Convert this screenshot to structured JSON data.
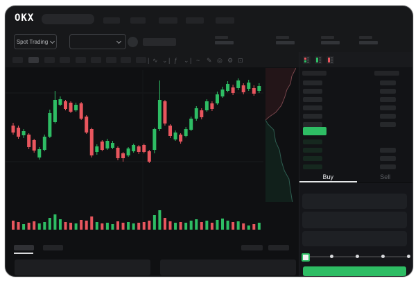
{
  "app": {
    "logo_text": "OKX"
  },
  "market_bar": {
    "market_selector_label": "Spot Trading"
  },
  "trade_panel": {
    "buy_tab_label": "Buy",
    "sell_tab_label": "Sell",
    "slider_stops": 5,
    "input_fields": 3
  },
  "order_book": {
    "view_toggles": [
      "book-both",
      "bids-only",
      "asks-only"
    ],
    "ask_rows": 6,
    "bid_rows": 4
  },
  "colors": {
    "up_green": "#2ebd64",
    "down_red": "#e8565e",
    "last_price_highlight": "#2ebd64",
    "bid_row_tint": "#16281f",
    "skeleton_gray": "#242528"
  },
  "chart_data": [
    {
      "type": "candlestick",
      "title": "",
      "xlabel": "",
      "ylabel": "",
      "note": "Axes are unlabeled in the screenshot; OHLC values are in normalized price units (0-190, higher = higher price).",
      "grid": "faint horizontal lines",
      "candles": [
        [
          110,
          114,
          97,
          100
        ],
        [
          107,
          110,
          91,
          94
        ],
        [
          96,
          105,
          92,
          102
        ],
        [
          97,
          99,
          76,
          79
        ],
        [
          89,
          91,
          71,
          74
        ],
        [
          64,
          79,
          61,
          76
        ],
        [
          75,
          97,
          73,
          94
        ],
        [
          94,
          133,
          92,
          128
        ],
        [
          115,
          160,
          113,
          147
        ],
        [
          140,
          152,
          138,
          148
        ],
        [
          145,
          147,
          132,
          134
        ],
        [
          143,
          145,
          128,
          130
        ],
        [
          132,
          143,
          130,
          140
        ],
        [
          142,
          144,
          118,
          120
        ],
        [
          123,
          125,
          98,
          100
        ],
        [
          105,
          107,
          64,
          67
        ],
        [
          72,
          83,
          68,
          80
        ],
        [
          87,
          89,
          73,
          75
        ],
        [
          77,
          91,
          75,
          88
        ],
        [
          78,
          88,
          76,
          85
        ],
        [
          78,
          80,
          60,
          63
        ],
        [
          70,
          72,
          58,
          63
        ],
        [
          67,
          79,
          65,
          77
        ],
        [
          73,
          84,
          71,
          82
        ],
        [
          80,
          82,
          69,
          72
        ],
        [
          82,
          84,
          70,
          72
        ],
        [
          73,
          75,
          56,
          58
        ],
        [
          75,
          107,
          70,
          105
        ],
        [
          105,
          175,
          102,
          147
        ],
        [
          145,
          147,
          110,
          113
        ],
        [
          110,
          112,
          92,
          95
        ],
        [
          90,
          103,
          88,
          100
        ],
        [
          97,
          99,
          84,
          87
        ],
        [
          95,
          108,
          93,
          105
        ],
        [
          104,
          123,
          102,
          120
        ],
        [
          120,
          138,
          117,
          135
        ],
        [
          132,
          135,
          119,
          122
        ],
        [
          132,
          148,
          130,
          145
        ],
        [
          142,
          145,
          131,
          134
        ],
        [
          142,
          159,
          140,
          155
        ],
        [
          152,
          166,
          150,
          162
        ],
        [
          160,
          174,
          158,
          170
        ],
        [
          165,
          169,
          154,
          157
        ],
        [
          164,
          178,
          161,
          175
        ],
        [
          168,
          171,
          155,
          158
        ],
        [
          163,
          176,
          160,
          172
        ],
        [
          164,
          168,
          153,
          156
        ],
        [
          160,
          171,
          157,
          167
        ]
      ],
      "candle_format": "[open, high, low, close]",
      "volume": [
        13,
        11,
        8,
        10,
        12,
        9,
        11,
        17,
        22,
        15,
        11,
        10,
        9,
        14,
        13,
        19,
        11,
        9,
        10,
        8,
        12,
        10,
        11,
        9,
        10,
        11,
        13,
        21,
        28,
        17,
        12,
        10,
        11,
        10,
        13,
        15,
        11,
        13,
        10,
        14,
        16,
        13,
        11,
        12,
        9,
        6,
        8,
        10
      ]
    },
    {
      "type": "area",
      "name": "market-depth",
      "note": "Sideways depth chart right of candles: red asks above mid price, green bids below. Points are [size-fraction, price-fraction].",
      "asks_line": [
        [
          1,
          0
        ],
        [
          0.93,
          0.08
        ],
        [
          0.86,
          0.16
        ],
        [
          0.82,
          0.3
        ],
        [
          0.7,
          0.42
        ],
        [
          0.63,
          0.56
        ],
        [
          0.52,
          0.72
        ],
        [
          0.34,
          0.85
        ],
        [
          0.12,
          0.94
        ],
        [
          0,
          1
        ]
      ],
      "bids_line": [
        [
          0,
          0
        ],
        [
          0.08,
          0.05
        ],
        [
          0.27,
          0.12
        ],
        [
          0.33,
          0.26
        ],
        [
          0.46,
          0.37
        ],
        [
          0.52,
          0.5
        ],
        [
          0.62,
          0.62
        ],
        [
          0.77,
          0.72
        ],
        [
          0.82,
          0.86
        ],
        [
          0.88,
          1
        ]
      ]
    }
  ]
}
